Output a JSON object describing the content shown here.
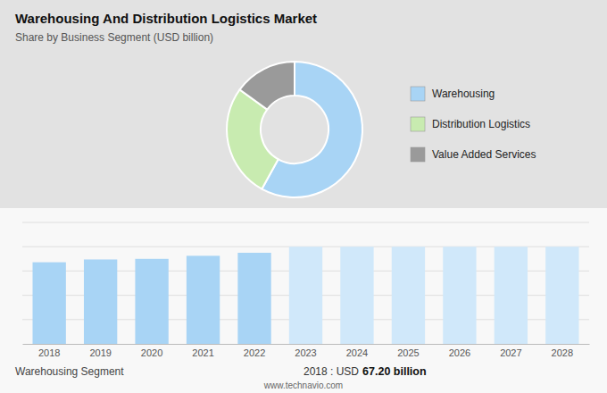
{
  "chart_data": [
    {
      "type": "pie",
      "title": "Warehousing And Distribution Logistics Market",
      "subtitle": "Share by Business Segment (USD billion)",
      "categories": [
        "Warehousing",
        "Distribution Logistics",
        "Value Added Services"
      ],
      "values": [
        58,
        27,
        15
      ],
      "colors": [
        "#a8d4f5",
        "#c8ebb0",
        "#9a9a9a"
      ],
      "legend": "right"
    },
    {
      "type": "bar",
      "categories": [
        "2018",
        "2019",
        "2020",
        "2021",
        "2022",
        "2023",
        "2024",
        "2025",
        "2026",
        "2027",
        "2028"
      ],
      "values": [
        67.2,
        69.5,
        70.0,
        72.5,
        75.0,
        80.0,
        80.0,
        80.0,
        80.0,
        80.0,
        80.0
      ],
      "colors": [
        "#a8d4f5",
        "#a8d4f5",
        "#a8d4f5",
        "#a8d4f5",
        "#a8d4f5",
        "#d0e8fa",
        "#d0e8fa",
        "#d0e8fa",
        "#d0e8fa",
        "#d0e8fa",
        "#d0e8fa"
      ],
      "ylim": [
        0,
        100
      ],
      "yticks": [
        20,
        40,
        60,
        80,
        100
      ],
      "grid": true,
      "tick_labels": "x",
      "annotations": [
        "Warehousing Segment",
        "2018 : USD",
        "67.20 billion",
        "www.technavio.com"
      ]
    }
  ]
}
